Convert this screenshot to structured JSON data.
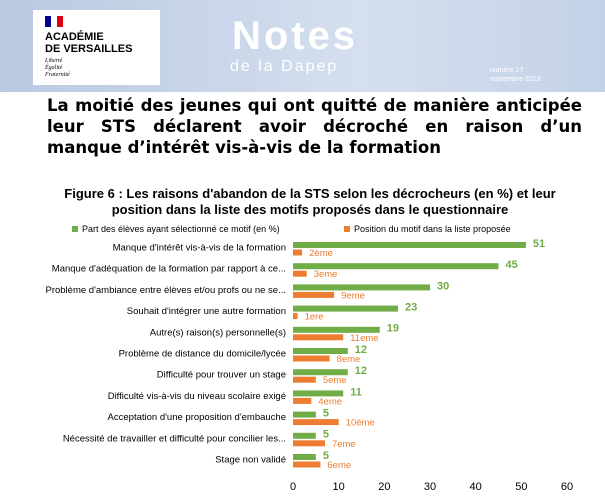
{
  "header": {
    "logo_lines": [
      "ACADÉMIE",
      "DE VERSAILLES"
    ],
    "motto": [
      "Liberté",
      "Égalité",
      "Fraternité"
    ],
    "title": "Notes",
    "subtitle": "de la Dapep",
    "issue": "numéro 27",
    "date": "septembre 2023"
  },
  "headline": "La moitié des jeunes qui ont quitté de manière anticipée leur STS déclarent avoir décroché en raison d’un manque d’intérêt vis-à-vis de la formation",
  "chart_data": {
    "type": "barh",
    "title": "Figure 6 : Les raisons d'abandon de la STS selon les décrocheurs (en %) et leur position dans la liste des motifs proposés dans le questionnaire",
    "categories": [
      "Manque d'intérêt vis-à-vis de la formation",
      "Manque d'adéquation de la formation par rapport à ce...",
      "Problème d'ambiance entre élèves et/ou profs ou ne se...",
      "Souhait d'intégrer une autre formation",
      "Autre(s) raison(s) personnelle(s)",
      "Problème de distance du domicile/lycée",
      "Difficulté pour trouver un stage",
      "Difficulté vis-à-vis du niveau scolaire exigé",
      "Acceptation d'une proposition d'embauche",
      "Nécessité de travailler et difficulté pour concilier les...",
      "Stage non validé"
    ],
    "series": [
      {
        "name": "Part des élèves ayant sélectionné ce motif (en %)",
        "color": "#70ad47",
        "values": [
          51,
          45,
          30,
          23,
          19,
          12,
          12,
          11,
          5,
          5,
          5
        ]
      },
      {
        "name": "Position du motif dans la liste proposée",
        "color": "#ed7d31",
        "values": [
          2,
          3,
          9,
          1,
          11,
          8,
          5,
          4,
          10,
          7,
          6
        ],
        "value_labels": [
          "2ème",
          "3eme",
          "9eme",
          "1ere",
          "11eme",
          "8eme",
          "5eme",
          "4eme",
          "10ème",
          "7eme",
          "6eme"
        ]
      }
    ],
    "xlim": [
      0,
      60
    ],
    "xticks": [
      0,
      10,
      20,
      30,
      40,
      50,
      60
    ],
    "grid": false
  }
}
